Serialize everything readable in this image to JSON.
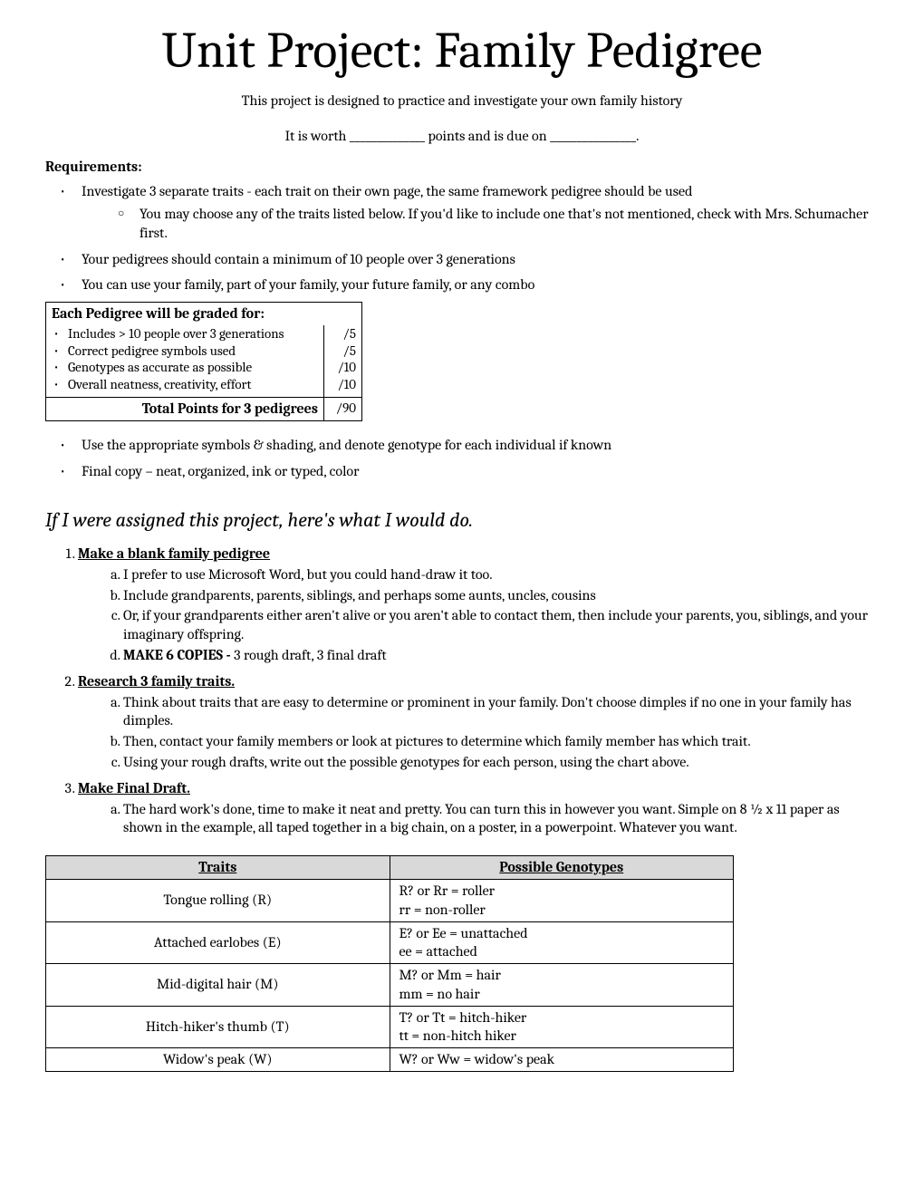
{
  "title": "Unit Project: Family Pedigree",
  "subtitle": "This project is designed to practice and investigate your own family history",
  "worth_line": "It is worth ______________ points and is due on ________________.",
  "requirements_label": "Requirements:",
  "requirements": {
    "r1": "Investigate 3 separate traits - each trait on their own page, the same framework pedigree should be used",
    "r1_sub": "You may choose any of the traits listed below. If you'd like to include one that's not mentioned, check with Mrs. Schumacher first.",
    "r2": "Your pedigrees should contain a minimum of 10 people over 3 generations",
    "r3": "You can use your family, part of your family, your future family, or any combo",
    "r4": "Use the appropriate symbols & shading, and denote genotype for each individual if known",
    "r5": "Final copy – neat, organized, ink or typed, color"
  },
  "grade_box": {
    "header": "Each Pedigree will be graded for:",
    "items": [
      "Includes > 10 people over 3 generations",
      "Correct pedigree symbols used",
      "Genotypes as accurate as possible",
      "Overall neatness, creativity, effort"
    ],
    "points": [
      "/5",
      "/5",
      "/10",
      "/10"
    ],
    "total_label": "Total Points for 3 pedigrees",
    "total_value": "/90"
  },
  "howto_head": "If I were assigned this project, here's what I would do.",
  "steps": {
    "s1_title": "Make a blank family pedigree",
    "s1a": "I prefer to use Microsoft Word, but you could hand-draw it too.",
    "s1b": "Include grandparents, parents, siblings, and perhaps some aunts, uncles, cousins",
    "s1c": "Or, if your grandparents either aren't alive or you aren't able to contact them, then include your parents, you, siblings, and your imaginary offspring.",
    "s1d_bold": "MAKE 6 COPIES - ",
    "s1d_rest": "3 rough draft, 3 final draft",
    "s2_title": "Research 3 family traits.",
    "s2a": "Think about traits that are easy to determine or prominent in your family. Don't choose dimples if no one in your family has dimples.",
    "s2b": "Then, contact your family members or look at pictures to determine which family member has which trait.",
    "s2c": "Using your rough drafts, write out the possible genotypes for each person, using the chart above.",
    "s3_title": "Make Final Draft.",
    "s3a": "The hard work's done, time to make it neat and pretty. You can turn this in however you want. Simple on 8 ½ x 11 paper as shown in the example, all taped together in a big chain, on a poster, in a powerpoint. Whatever you want."
  },
  "traits_table": {
    "header_trait": "Traits",
    "header_geno": "Possible Genotypes",
    "rows": [
      {
        "trait": "Tongue rolling (R)",
        "geno1": "R? or Rr = roller",
        "geno2": "rr = non-roller"
      },
      {
        "trait": "Attached earlobes (E)",
        "geno1": "E? or Ee = unattached",
        "geno2": "ee = attached"
      },
      {
        "trait": "Mid-digital hair (M)",
        "geno1": "M? or Mm = hair",
        "geno2": "mm = no hair"
      },
      {
        "trait": "Hitch-hiker's thumb (T)",
        "geno1": "T? or Tt = hitch-hiker",
        "geno2": "tt = non-hitch hiker"
      },
      {
        "trait": "Widow's peak (W)",
        "geno1": "W? or Ww = widow's peak",
        "geno2": ""
      }
    ]
  }
}
